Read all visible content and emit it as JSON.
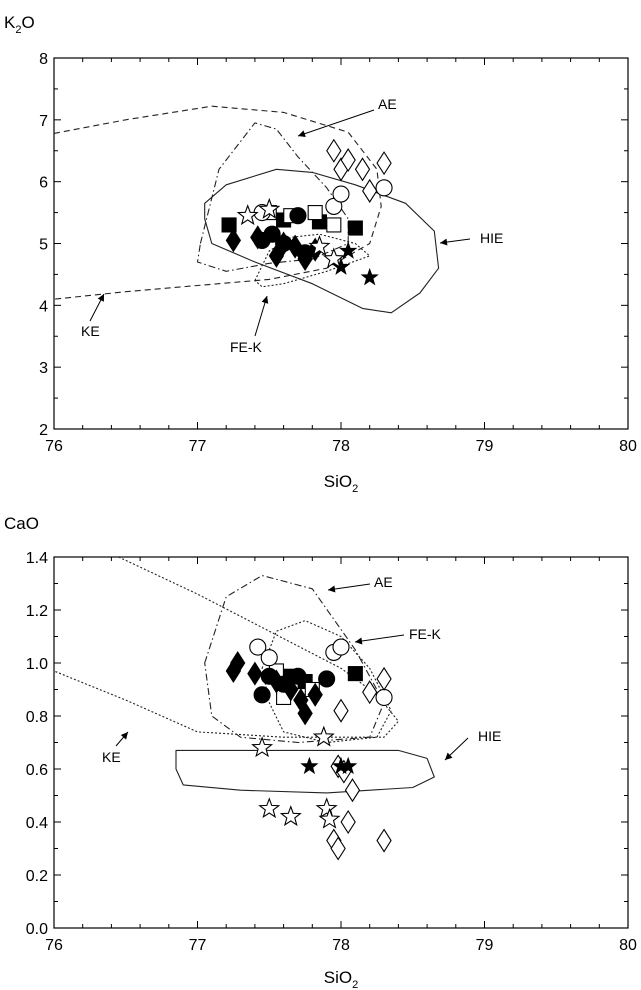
{
  "chart_data": [
    {
      "type": "scatter",
      "title": "",
      "xlabel": "SiO",
      "xlabel_sub": "2",
      "ylabel": "K",
      "ylabel_sub": "2",
      "ylabel_tail": "O",
      "xlim": [
        76,
        80
      ],
      "ylim": [
        2,
        8
      ],
      "x_ticks": [
        "76",
        "77",
        "78",
        "79",
        "80"
      ],
      "y_ticks": [
        "2",
        "3",
        "4",
        "5",
        "6",
        "7",
        "8"
      ],
      "grid": false,
      "fields": [
        {
          "name": "KE",
          "style": "dashed",
          "points": [
            [
              76,
              6.78
            ],
            [
              76.5,
              7.0
            ],
            [
              77.1,
              7.22
            ],
            [
              77.6,
              7.12
            ],
            [
              78.05,
              6.8
            ],
            [
              78.25,
              6.2
            ],
            [
              78.28,
              5.6
            ],
            [
              78.2,
              5.0
            ],
            [
              77.9,
              4.6
            ],
            [
              77.5,
              4.42
            ],
            [
              77.0,
              4.32
            ],
            [
              76.5,
              4.22
            ],
            [
              76,
              4.1
            ]
          ]
        },
        {
          "name": "AE",
          "style": "dash-dot",
          "points": [
            [
              77.02,
              5.0
            ],
            [
              77.15,
              6.2
            ],
            [
              77.4,
              6.95
            ],
            [
              77.55,
              6.85
            ],
            [
              77.7,
              6.4
            ],
            [
              77.9,
              5.9
            ],
            [
              78.05,
              5.4
            ],
            [
              78.05,
              5.0
            ],
            [
              77.8,
              4.75
            ],
            [
              77.5,
              4.68
            ],
            [
              77.2,
              4.55
            ],
            [
              77.0,
              4.7
            ]
          ]
        },
        {
          "name": "FE-K",
          "style": "dotted",
          "points": [
            [
              77.4,
              4.4
            ],
            [
              77.5,
              4.88
            ],
            [
              77.65,
              5.1
            ],
            [
              77.85,
              5.15
            ],
            [
              78.1,
              5.0
            ],
            [
              78.2,
              4.8
            ],
            [
              77.9,
              4.55
            ],
            [
              77.6,
              4.35
            ],
            [
              77.45,
              4.3
            ]
          ]
        },
        {
          "name": "HIE",
          "style": "solid",
          "points": [
            [
              77.05,
              5.65
            ],
            [
              77.2,
              5.95
            ],
            [
              77.55,
              6.2
            ],
            [
              77.8,
              6.15
            ],
            [
              78.1,
              5.95
            ],
            [
              78.45,
              5.65
            ],
            [
              78.65,
              5.2
            ],
            [
              78.68,
              4.6
            ],
            [
              78.55,
              4.2
            ],
            [
              78.35,
              3.88
            ],
            [
              78.15,
              3.95
            ],
            [
              77.8,
              4.35
            ],
            [
              77.4,
              4.7
            ],
            [
              77.1,
              5.0
            ],
            [
              77.05,
              5.4
            ]
          ]
        }
      ],
      "series": [
        {
          "marker": "filled-square",
          "points": [
            [
              77.22,
              5.3
            ],
            [
              77.6,
              5.38
            ],
            [
              77.85,
              5.35
            ],
            [
              78.1,
              5.25
            ]
          ]
        },
        {
          "marker": "open-square",
          "points": [
            [
              77.5,
              5.5
            ],
            [
              77.65,
              5.45
            ],
            [
              77.82,
              5.5
            ],
            [
              77.95,
              5.3
            ]
          ]
        },
        {
          "marker": "filled-circle",
          "points": [
            [
              77.45,
              5.05
            ],
            [
              77.52,
              5.15
            ],
            [
              77.6,
              5.0
            ],
            [
              77.7,
              5.45
            ],
            [
              77.75,
              4.85
            ]
          ]
        },
        {
          "marker": "open-circle",
          "points": [
            [
              77.45,
              5.5
            ],
            [
              77.95,
              5.6
            ],
            [
              78.0,
              5.8
            ],
            [
              78.3,
              5.9
            ]
          ]
        },
        {
          "marker": "filled-diamond",
          "points": [
            [
              77.25,
              5.05
            ],
            [
              77.42,
              5.1
            ],
            [
              77.55,
              4.8
            ],
            [
              77.6,
              5.0
            ],
            [
              77.68,
              4.95
            ],
            [
              77.75,
              4.75
            ],
            [
              77.82,
              4.9
            ]
          ]
        },
        {
          "marker": "open-diamond",
          "points": [
            [
              77.95,
              6.5
            ],
            [
              78.0,
              6.2
            ],
            [
              78.05,
              6.35
            ],
            [
              78.15,
              6.2
            ],
            [
              78.2,
              5.85
            ],
            [
              78.3,
              6.3
            ]
          ]
        },
        {
          "marker": "filled-star",
          "points": [
            [
              78.0,
              4.62
            ],
            [
              78.05,
              4.88
            ],
            [
              78.2,
              4.45
            ]
          ]
        },
        {
          "marker": "open-star",
          "points": [
            [
              77.35,
              5.45
            ],
            [
              77.5,
              5.55
            ],
            [
              77.85,
              4.95
            ],
            [
              77.95,
              4.75
            ]
          ]
        }
      ]
    },
    {
      "type": "scatter",
      "title": "",
      "xlabel": "SiO",
      "xlabel_sub": "2",
      "ylabel": "CaO",
      "xlim": [
        76,
        80
      ],
      "ylim": [
        0.0,
        1.4
      ],
      "x_ticks": [
        "76",
        "77",
        "78",
        "79",
        "80"
      ],
      "y_ticks": [
        "0.0",
        "0.2",
        "0.4",
        "0.6",
        "0.8",
        "1.0",
        "1.2",
        "1.4"
      ],
      "grid": false,
      "fields": [
        {
          "name": "KE",
          "style": "dotted",
          "points": [
            [
              76.45,
              1.4
            ],
            [
              77.0,
              1.26
            ],
            [
              77.5,
              1.12
            ],
            [
              78.0,
              0.98
            ],
            [
              78.25,
              0.88
            ],
            [
              78.4,
              0.78
            ],
            [
              78.3,
              0.72
            ],
            [
              77.6,
              0.72
            ],
            [
              77.0,
              0.74
            ],
            [
              76.5,
              0.86
            ],
            [
              76.0,
              0.97
            ]
          ]
        },
        {
          "name": "AE",
          "style": "dash-dot",
          "points": [
            [
              77.05,
              1.0
            ],
            [
              77.2,
              1.25
            ],
            [
              77.45,
              1.33
            ],
            [
              77.8,
              1.28
            ],
            [
              78.1,
              1.05
            ],
            [
              78.3,
              0.85
            ],
            [
              78.2,
              0.72
            ],
            [
              77.7,
              0.7
            ],
            [
              77.3,
              0.72
            ],
            [
              77.1,
              0.8
            ]
          ]
        },
        {
          "name": "FE-K",
          "style": "dotted",
          "points": [
            [
              77.45,
              0.98
            ],
            [
              77.55,
              1.12
            ],
            [
              77.75,
              1.16
            ],
            [
              78.0,
              1.1
            ],
            [
              78.2,
              0.98
            ],
            [
              78.35,
              0.82
            ],
            [
              78.25,
              0.72
            ],
            [
              77.9,
              0.7
            ],
            [
              77.6,
              0.74
            ],
            [
              77.5,
              0.85
            ]
          ]
        },
        {
          "name": "HIE",
          "style": "solid",
          "points": [
            [
              76.85,
              0.67
            ],
            [
              77.2,
              0.67
            ],
            [
              77.6,
              0.67
            ],
            [
              78.0,
              0.67
            ],
            [
              78.4,
              0.67
            ],
            [
              78.6,
              0.64
            ],
            [
              78.65,
              0.57
            ],
            [
              78.5,
              0.53
            ],
            [
              77.9,
              0.51
            ],
            [
              77.3,
              0.52
            ],
            [
              76.9,
              0.54
            ],
            [
              76.85,
              0.6
            ]
          ]
        }
      ],
      "series": [
        {
          "marker": "filled-square",
          "points": [
            [
              77.65,
              0.95
            ],
            [
              77.75,
              0.93
            ],
            [
              78.1,
              0.96
            ]
          ]
        },
        {
          "marker": "open-square",
          "points": [
            [
              77.55,
              0.97
            ],
            [
              77.6,
              0.87
            ],
            [
              77.8,
              0.9
            ]
          ]
        },
        {
          "marker": "filled-circle",
          "points": [
            [
              77.45,
              0.88
            ],
            [
              77.5,
              0.95
            ],
            [
              77.6,
              0.92
            ],
            [
              77.7,
              0.95
            ],
            [
              77.9,
              0.94
            ]
          ]
        },
        {
          "marker": "open-circle",
          "points": [
            [
              77.42,
              1.06
            ],
            [
              77.5,
              1.02
            ],
            [
              77.95,
              1.04
            ],
            [
              78.0,
              1.06
            ],
            [
              78.3,
              0.87
            ]
          ]
        },
        {
          "marker": "filled-diamond",
          "points": [
            [
              77.25,
              0.97
            ],
            [
              77.28,
              1.0
            ],
            [
              77.4,
              0.96
            ],
            [
              77.55,
              0.93
            ],
            [
              77.65,
              0.9
            ],
            [
              77.72,
              0.86
            ],
            [
              77.75,
              0.81
            ],
            [
              77.82,
              0.88
            ]
          ]
        },
        {
          "marker": "open-diamond",
          "points": [
            [
              78.0,
              0.82
            ],
            [
              78.2,
              0.89
            ],
            [
              78.3,
              0.94
            ],
            [
              77.98,
              0.61
            ],
            [
              78.02,
              0.59
            ],
            [
              78.08,
              0.52
            ],
            [
              78.05,
              0.4
            ],
            [
              77.95,
              0.33
            ],
            [
              77.98,
              0.3
            ],
            [
              78.3,
              0.33
            ]
          ]
        },
        {
          "marker": "filled-star",
          "points": [
            [
              77.78,
              0.61
            ],
            [
              78.0,
              0.61
            ],
            [
              78.05,
              0.61
            ]
          ]
        },
        {
          "marker": "open-star",
          "points": [
            [
              77.45,
              0.68
            ],
            [
              77.88,
              0.72
            ],
            [
              77.5,
              0.45
            ],
            [
              77.65,
              0.42
            ],
            [
              77.9,
              0.45
            ],
            [
              77.92,
              0.41
            ]
          ]
        }
      ]
    }
  ]
}
